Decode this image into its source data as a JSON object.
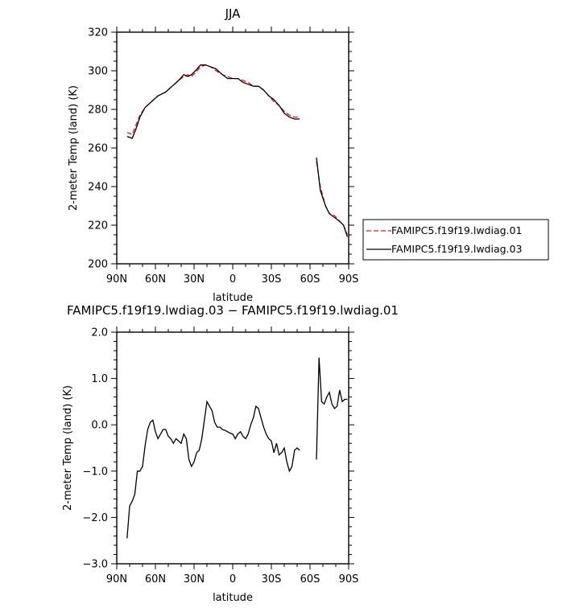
{
  "chart_data": [
    {
      "type": "line",
      "title": "JJA",
      "xlabel": "latitude",
      "ylabel": "2-meter Temp (land) (K)",
      "xlim": [
        -90,
        90
      ],
      "ylim": [
        200,
        320
      ],
      "grid": false,
      "xticks": [
        {
          "value": -90,
          "label": "90N"
        },
        {
          "value": -60,
          "label": "60N"
        },
        {
          "value": -30,
          "label": "30N"
        },
        {
          "value": 0,
          "label": "0"
        },
        {
          "value": 30,
          "label": "30S"
        },
        {
          "value": 60,
          "label": "60S"
        },
        {
          "value": 90,
          "label": "90S"
        }
      ],
      "yticks": [
        {
          "value": 200,
          "label": "200"
        },
        {
          "value": 220,
          "label": "220"
        },
        {
          "value": 240,
          "label": "240"
        },
        {
          "value": 260,
          "label": "260"
        },
        {
          "value": 280,
          "label": "280"
        },
        {
          "value": 300,
          "label": "300"
        },
        {
          "value": 320,
          "label": "320"
        }
      ],
      "legend": {
        "placement": "right",
        "entries": [
          {
            "label": "FAMIPC5.f19f19.lwdiag.01",
            "color": "#e8111c",
            "dash": "dashed"
          },
          {
            "label": "FAMIPC5.f19f19.lwdiag.03",
            "color": "#000000",
            "dash": "solid"
          }
        ]
      },
      "series": [
        {
          "name": "FAMIPC5.f19f19.lwdiag.01",
          "color": "#e8111c",
          "dash": "dashed",
          "segments": [
            [
              [
                -82,
                268
              ],
              [
                -78,
                267
              ],
              [
                -75,
                272
              ],
              [
                -72,
                277
              ],
              [
                -68,
                281
              ],
              [
                -63,
                284
              ],
              [
                -58,
                287
              ],
              [
                -52,
                289
              ],
              [
                -47,
                292
              ],
              [
                -42,
                295
              ],
              [
                -38,
                297
              ],
              [
                -35,
                298
              ],
              [
                -32,
                297
              ],
              [
                -29,
                299
              ],
              [
                -25,
                302
              ],
              [
                -21,
                303
              ],
              [
                -17,
                302
              ],
              [
                -13,
                300
              ],
              [
                -8,
                298
              ],
              [
                -4,
                297
              ],
              [
                0,
                296
              ],
              [
                4,
                296
              ],
              [
                8,
                295
              ],
              [
                12,
                294
              ],
              [
                16,
                292
              ],
              [
                20,
                292
              ],
              [
                24,
                290
              ],
              [
                28,
                287
              ],
              [
                32,
                284
              ],
              [
                36,
                282
              ],
              [
                40,
                279
              ],
              [
                44,
                277
              ],
              [
                48,
                276
              ],
              [
                52,
                276
              ]
            ],
            [
              [
                65,
                253
              ],
              [
                68,
                240
              ],
              [
                72,
                230
              ],
              [
                75,
                226
              ],
              [
                79,
                225
              ],
              [
                83,
                222
              ],
              [
                86,
                220
              ],
              [
                89,
                215
              ]
            ]
          ]
        },
        {
          "name": "FAMIPC5.f19f19.lwdiag.03",
          "color": "#000000",
          "dash": "solid",
          "segments": [
            [
              [
                -82,
                266
              ],
              [
                -78,
                265
              ],
              [
                -75,
                270
              ],
              [
                -72,
                276
              ],
              [
                -68,
                281
              ],
              [
                -63,
                284
              ],
              [
                -58,
                287
              ],
              [
                -52,
                289
              ],
              [
                -47,
                292
              ],
              [
                -42,
                295
              ],
              [
                -38,
                298
              ],
              [
                -35,
                297
              ],
              [
                -32,
                298
              ],
              [
                -29,
                300
              ],
              [
                -25,
                303
              ],
              [
                -21,
                303
              ],
              [
                -17,
                302
              ],
              [
                -13,
                301
              ],
              [
                -8,
                298
              ],
              [
                -4,
                296
              ],
              [
                0,
                296
              ],
              [
                4,
                296
              ],
              [
                8,
                294
              ],
              [
                12,
                293
              ],
              [
                16,
                292
              ],
              [
                20,
                292
              ],
              [
                24,
                290
              ],
              [
                28,
                287
              ],
              [
                32,
                285
              ],
              [
                36,
                282
              ],
              [
                40,
                278
              ],
              [
                44,
                276
              ],
              [
                48,
                275
              ],
              [
                52,
                275
              ]
            ],
            [
              [
                65,
                255
              ],
              [
                68,
                238
              ],
              [
                72,
                230
              ],
              [
                75,
                226
              ],
              [
                79,
                224
              ],
              [
                83,
                222
              ],
              [
                86,
                220
              ],
              [
                89,
                214
              ]
            ]
          ]
        }
      ]
    },
    {
      "type": "line",
      "title": "FAMIPC5.f19f19.lwdiag.03 − FAMIPC5.f19f19.lwdiag.01",
      "xlabel": "latitude",
      "ylabel": "2-meter Temp (land) (K)",
      "xlim": [
        -90,
        90
      ],
      "ylim": [
        -3,
        2
      ],
      "grid": false,
      "xticks": [
        {
          "value": -90,
          "label": "90N"
        },
        {
          "value": -60,
          "label": "60N"
        },
        {
          "value": -30,
          "label": "30N"
        },
        {
          "value": 0,
          "label": "0"
        },
        {
          "value": 30,
          "label": "30S"
        },
        {
          "value": 60,
          "label": "60S"
        },
        {
          "value": 90,
          "label": "90S"
        }
      ],
      "yticks": [
        {
          "value": -3,
          "label": "−3.0"
        },
        {
          "value": -2,
          "label": "−2.0"
        },
        {
          "value": -1,
          "label": "−1.0"
        },
        {
          "value": 0,
          "label": "0.0"
        },
        {
          "value": 1,
          "label": "1.0"
        },
        {
          "value": 2,
          "label": "2.0"
        }
      ],
      "series": [
        {
          "color": "#000000",
          "dash": "solid",
          "segments": [
            [
              [
                -82,
                -2.45
              ],
              [
                -80,
                -1.75
              ],
              [
                -78,
                -1.65
              ],
              [
                -76,
                -1.5
              ],
              [
                -74,
                -1.0
              ],
              [
                -72,
                -1.0
              ],
              [
                -70,
                -0.9
              ],
              [
                -68,
                -0.45
              ],
              [
                -66,
                -0.1
              ],
              [
                -64,
                0.05
              ],
              [
                -62,
                0.1
              ],
              [
                -60,
                -0.15
              ],
              [
                -58,
                -0.3
              ],
              [
                -56,
                -0.2
              ],
              [
                -54,
                -0.1
              ],
              [
                -52,
                -0.1
              ],
              [
                -50,
                -0.25
              ],
              [
                -48,
                -0.3
              ],
              [
                -46,
                -0.4
              ],
              [
                -44,
                -0.3
              ],
              [
                -42,
                -0.35
              ],
              [
                -40,
                -0.4
              ],
              [
                -38,
                -0.2
              ],
              [
                -36,
                -0.3
              ],
              [
                -34,
                -0.75
              ],
              [
                -32,
                -0.9
              ],
              [
                -30,
                -0.8
              ],
              [
                -28,
                -0.6
              ],
              [
                -26,
                -0.55
              ],
              [
                -24,
                -0.3
              ],
              [
                -22,
                0.1
              ],
              [
                -20,
                0.5
              ],
              [
                -18,
                0.4
              ],
              [
                -16,
                0.3
              ],
              [
                -14,
                0.05
              ],
              [
                -12,
                -0.05
              ],
              [
                -10,
                -0.05
              ],
              [
                -8,
                -0.1
              ],
              [
                -6,
                -0.12
              ],
              [
                -4,
                -0.15
              ],
              [
                -2,
                -0.18
              ],
              [
                0,
                -0.2
              ],
              [
                2,
                -0.3
              ],
              [
                4,
                -0.2
              ],
              [
                6,
                -0.15
              ],
              [
                8,
                -0.25
              ],
              [
                10,
                -0.3
              ],
              [
                12,
                -0.2
              ],
              [
                14,
                0.0
              ],
              [
                16,
                0.15
              ],
              [
                18,
                0.4
              ],
              [
                20,
                0.35
              ],
              [
                22,
                0.15
              ],
              [
                24,
                -0.05
              ],
              [
                26,
                -0.2
              ],
              [
                28,
                -0.3
              ],
              [
                30,
                -0.35
              ],
              [
                32,
                -0.6
              ],
              [
                34,
                -0.4
              ],
              [
                36,
                -0.65
              ],
              [
                38,
                -0.6
              ],
              [
                40,
                -0.5
              ],
              [
                42,
                -0.8
              ],
              [
                44,
                -1.0
              ],
              [
                46,
                -0.9
              ],
              [
                48,
                -0.55
              ],
              [
                50,
                -0.5
              ],
              [
                52,
                -0.55
              ]
            ],
            [
              [
                65,
                -0.75
              ],
              [
                67,
                1.45
              ],
              [
                69,
                0.5
              ],
              [
                71,
                0.45
              ],
              [
                73,
                0.6
              ],
              [
                75,
                0.7
              ],
              [
                77,
                0.45
              ],
              [
                79,
                0.35
              ],
              [
                81,
                0.4
              ],
              [
                83,
                0.75
              ],
              [
                85,
                0.5
              ],
              [
                87,
                0.55
              ],
              [
                89,
                0.55
              ]
            ]
          ]
        }
      ]
    }
  ]
}
